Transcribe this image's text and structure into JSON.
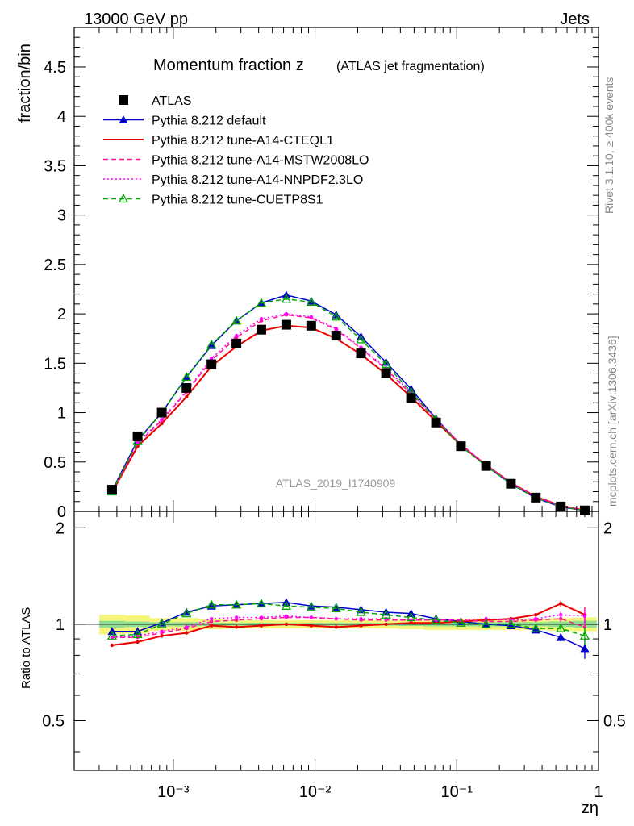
{
  "header": {
    "process": "13000 GeV pp",
    "category": "Jets",
    "rivet_label": "Rivet 3.1.10, ≥ 400k events",
    "mcplots_label": "mcplots.cern.ch [arXiv:1306.3436]",
    "analysis_id": "ATLAS_2019_I1740909"
  },
  "chart_data": {
    "type": "line",
    "title": "Momentum fraction z",
    "subtitle": "(ATLAS jet fragmentation)",
    "xlabel": "zη",
    "ylabel": "fraction/bin",
    "ratio_ylabel": "Ratio to ATLAS",
    "xscale": "log",
    "xlim": [
      0.0002,
      1
    ],
    "ylim": [
      0,
      4.9
    ],
    "ratio_ylim": [
      0.35,
      2.25
    ],
    "x_tick_labels": [
      "10⁻³",
      "10⁻²",
      "10⁻¹",
      "1"
    ],
    "y_tick_labels": [
      "0",
      "0.5",
      "1",
      "1.5",
      "2",
      "2.5",
      "3",
      "3.5",
      "4",
      "4.5"
    ],
    "ratio_tick_labels": [
      "0.5",
      "1",
      "2"
    ],
    "x": [
      0.00037,
      0.00056,
      0.00083,
      0.00124,
      0.00186,
      0.00279,
      0.00418,
      0.00627,
      0.0094,
      0.0141,
      0.0211,
      0.0317,
      0.0476,
      0.0714,
      0.107,
      0.161,
      0.241,
      0.361,
      0.542,
      0.8
    ],
    "series": [
      {
        "name": "ATLAS",
        "color": "#000000",
        "style": "data",
        "values": [
          0.22,
          0.76,
          1.0,
          1.25,
          1.49,
          1.7,
          1.84,
          1.89,
          1.88,
          1.78,
          1.6,
          1.4,
          1.15,
          0.9,
          0.66,
          0.46,
          0.28,
          0.14,
          0.05,
          0.01
        ],
        "ratio": [
          1,
          1,
          1,
          1,
          1,
          1,
          1,
          1,
          1,
          1,
          1,
          1,
          1,
          1,
          1,
          1,
          1,
          1,
          1,
          1
        ]
      },
      {
        "name": "Pythia 8.212 default",
        "color": "#0000cc",
        "style": "solid-triangle",
        "values": [
          0.21,
          0.72,
          1.0,
          1.36,
          1.68,
          1.93,
          2.11,
          2.19,
          2.13,
          1.99,
          1.77,
          1.51,
          1.24,
          0.94,
          0.67,
          0.46,
          0.28,
          0.135,
          0.046,
          0.0085
        ],
        "ratio": [
          0.95,
          0.95,
          1.01,
          1.09,
          1.14,
          1.15,
          1.16,
          1.17,
          1.14,
          1.13,
          1.11,
          1.09,
          1.08,
          1.04,
          1.02,
          1.0,
          0.99,
          0.96,
          0.91,
          0.84
        ]
      },
      {
        "name": "Pythia 8.212 tune-A14-CTEQL1",
        "color": "#ee0000",
        "style": "solid",
        "values": [
          0.19,
          0.66,
          0.89,
          1.16,
          1.47,
          1.67,
          1.83,
          1.88,
          1.86,
          1.75,
          1.59,
          1.39,
          1.16,
          0.91,
          0.67,
          0.47,
          0.29,
          0.15,
          0.058,
          0.011
        ],
        "ratio": [
          0.86,
          0.88,
          0.92,
          0.94,
          0.99,
          0.98,
          0.99,
          1.0,
          0.99,
          0.98,
          0.99,
          1.0,
          1.01,
          1.01,
          1.02,
          1.03,
          1.04,
          1.07,
          1.16,
          1.07
        ]
      },
      {
        "name": "Pythia 8.212 tune-A14-MSTW2008LO",
        "color": "#ff1493",
        "style": "dashed",
        "values": [
          0.2,
          0.69,
          0.92,
          1.21,
          1.53,
          1.76,
          1.93,
          1.99,
          1.96,
          1.84,
          1.65,
          1.44,
          1.19,
          0.93,
          0.68,
          0.47,
          0.29,
          0.145,
          0.052,
          0.0095
        ],
        "ratio": [
          0.91,
          0.91,
          0.94,
          0.97,
          1.02,
          1.03,
          1.04,
          1.05,
          1.05,
          1.04,
          1.03,
          1.03,
          1.03,
          1.03,
          1.03,
          1.02,
          1.02,
          1.03,
          1.04,
          0.98
        ]
      },
      {
        "name": "Pythia 8.212 tune-A14-NNPDF2.3LO",
        "color": "#ff00ff",
        "style": "dotted",
        "values": [
          0.2,
          0.7,
          0.93,
          1.22,
          1.55,
          1.78,
          1.95,
          2.0,
          1.97,
          1.85,
          1.66,
          1.45,
          1.2,
          0.94,
          0.68,
          0.47,
          0.29,
          0.147,
          0.054,
          0.011
        ],
        "ratio": [
          0.91,
          0.92,
          0.95,
          0.98,
          1.04,
          1.05,
          1.05,
          1.06,
          1.05,
          1.04,
          1.04,
          1.04,
          1.03,
          1.03,
          1.03,
          1.04,
          1.03,
          1.04,
          1.07,
          1.06
        ]
      },
      {
        "name": "Pythia 8.212 tune-CUETP8S1",
        "color": "#00aa00",
        "style": "dashed-open-triangle",
        "values": [
          0.2,
          0.71,
          1.0,
          1.36,
          1.69,
          1.93,
          2.11,
          2.15,
          2.12,
          1.97,
          1.74,
          1.49,
          1.21,
          0.93,
          0.66,
          0.46,
          0.28,
          0.136,
          0.048,
          0.0093
        ],
        "ratio": [
          0.92,
          0.93,
          1.0,
          1.08,
          1.15,
          1.15,
          1.16,
          1.14,
          1.13,
          1.12,
          1.09,
          1.07,
          1.05,
          1.03,
          1.01,
          1.0,
          1.0,
          0.97,
          0.97,
          0.92
        ]
      }
    ]
  }
}
